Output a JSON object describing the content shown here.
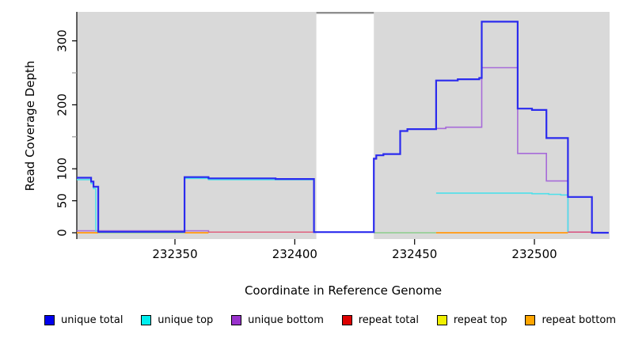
{
  "figure": {
    "xlabel": "Coordinate in Reference Genome",
    "ylabel": "Read Coverage Depth"
  },
  "chart_data": {
    "type": "line",
    "subtype": "step-coverage-plot",
    "title": "",
    "xlabel": "Coordinate in Reference Genome",
    "ylabel": "Read Coverage Depth",
    "x_range": [
      232309,
      232531
    ],
    "y_range": [
      0,
      345
    ],
    "grid": "off",
    "legend_position": "bottom",
    "x_ticks": [
      {
        "value": 232350,
        "label": "232350"
      },
      {
        "value": 232400,
        "label": "232400"
      },
      {
        "value": 232450,
        "label": "232450"
      },
      {
        "value": 232500,
        "label": "232500"
      }
    ],
    "y_ticks": [
      {
        "value": 0,
        "label": "0"
      },
      {
        "value": 50,
        "label": "50"
      },
      {
        "value": 100,
        "label": "100"
      },
      {
        "value": 150,
        "label": ""
      },
      {
        "value": 200,
        "label": "200"
      },
      {
        "value": 250,
        "label": ""
      },
      {
        "value": 300,
        "label": "300"
      }
    ],
    "background": {
      "panel_color": "#d9d9d9",
      "uncovered_gap": {
        "x_start": 232409,
        "x_end": 232433,
        "color": "#ffffff",
        "top_line_color": "#8f8f8f"
      }
    },
    "legend": [
      {
        "label": "unique total",
        "color": "#0000ee"
      },
      {
        "label": "unique top",
        "color": "#00eeee"
      },
      {
        "label": "unique bottom",
        "color": "#9932cc"
      },
      {
        "label": "repeat total",
        "color": "#dd0000"
      },
      {
        "label": "repeat top",
        "color": "#f0f000"
      },
      {
        "label": "repeat bottom",
        "color": "#ffa500"
      }
    ],
    "series": [
      {
        "name": "unique bottom",
        "line_color": "#a76bd9",
        "line_width": 1.6,
        "segments": [
          [
            [
              232309,
              3
            ],
            [
              232364,
              0
            ]
          ],
          [
            [
              232433,
              115
            ],
            [
              232434,
              121
            ],
            [
              232437,
              123
            ],
            [
              232444,
              159
            ],
            [
              232447,
              162
            ],
            [
              232459,
              163
            ],
            [
              232463,
              165
            ],
            [
              232478,
              258
            ],
            [
              232493,
              124
            ],
            [
              232505,
              81
            ],
            [
              232514,
              1
            ],
            [
              232524,
              0
            ],
            [
              232531,
              0
            ]
          ]
        ]
      },
      {
        "name": "unique top",
        "line_color": "#4de0ea",
        "line_width": 1.6,
        "segments": [
          [
            [
              232309,
              83
            ],
            [
              232315,
              77
            ],
            [
              232316,
              69
            ],
            [
              232317,
              0
            ]
          ],
          [
            [
              232354,
              85
            ],
            [
              232364,
              83
            ],
            [
              232408,
              0
            ]
          ],
          [
            [
              232459,
              62
            ],
            [
              232492,
              62
            ],
            [
              232499,
              61
            ],
            [
              232506,
              60
            ],
            [
              232511,
              59
            ],
            [
              232514,
              0
            ]
          ]
        ]
      },
      {
        "name": "repeat top",
        "line_color": "#8ccd8c",
        "line_width": 1.6,
        "segments": [
          [
            [
              232318,
              0
            ],
            [
              232354,
              0
            ]
          ],
          [
            [
              232433,
              0
            ],
            [
              232459,
              0
            ]
          ]
        ]
      },
      {
        "name": "repeat bottom",
        "line_color": "#ffa126",
        "line_width": 2,
        "segments": [
          [
            [
              232309,
              0
            ],
            [
              232318,
              0
            ]
          ],
          [
            [
              232354,
              0
            ],
            [
              232364,
              0
            ]
          ],
          [
            [
              232459,
              0
            ],
            [
              232514,
              0
            ]
          ]
        ]
      },
      {
        "name": "repeat total",
        "line_color": "#e05575",
        "line_width": 1.4,
        "segments": [
          [
            [
              232364,
              1
            ],
            [
              232409,
              1
            ]
          ],
          [
            [
              232514,
              1
            ],
            [
              232524,
              1
            ]
          ]
        ]
      },
      {
        "name": "unique total",
        "line_color": "#2b2bee",
        "line_width": 2.2,
        "segments": [
          [
            [
              232309,
              86
            ],
            [
              232315,
              80
            ],
            [
              232316,
              72
            ],
            [
              232318,
              1.5
            ],
            [
              232354,
              87
            ],
            [
              232364,
              85
            ],
            [
              232392,
              84
            ],
            [
              232408,
              1
            ],
            [
              232433,
              116
            ],
            [
              232434,
              121
            ],
            [
              232437,
              123
            ],
            [
              232444,
              159
            ],
            [
              232447,
              162
            ],
            [
              232459,
              238
            ],
            [
              232468,
              240
            ],
            [
              232477,
              242
            ],
            [
              232478,
              330
            ],
            [
              232493,
              194
            ],
            [
              232499,
              192
            ],
            [
              232505,
              148
            ],
            [
              232514,
              56
            ],
            [
              232524,
              0
            ],
            [
              232531,
              0
            ]
          ]
        ]
      }
    ]
  }
}
